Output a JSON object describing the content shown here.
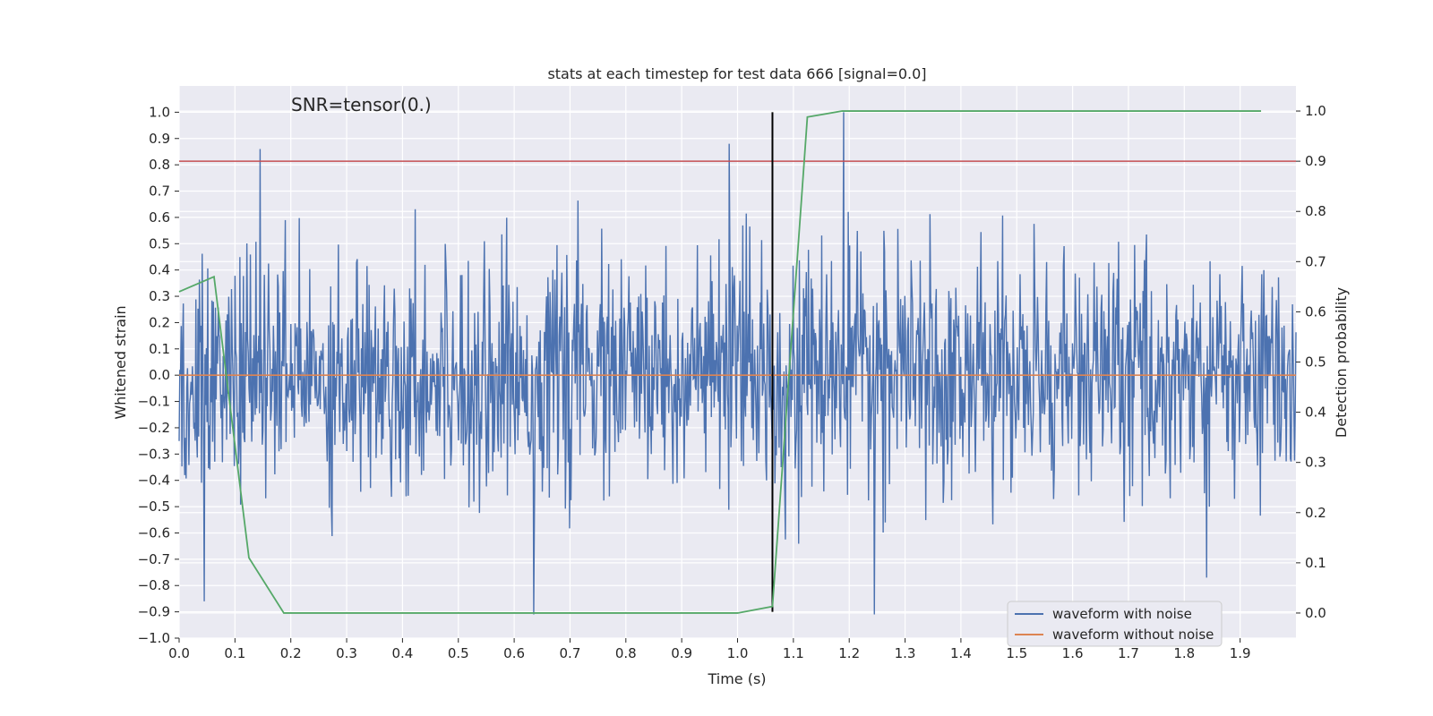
{
  "chart_data": {
    "type": "line",
    "title": "stats at each timestep for test data 666 [signal=0.0]",
    "annotation": "SNR=tensor(0.)",
    "xlabel": "Time (s)",
    "ylabel": "Whitened strain",
    "ylabel_right": "Detection probability",
    "xlim": [
      0.0,
      2.0
    ],
    "ylim": [
      -1.0,
      1.1
    ],
    "ylim_right": [
      -0.05,
      1.05
    ],
    "grid": true,
    "legend_position": "lower-right",
    "x_ticks": [
      "0.0",
      "0.1",
      "0.2",
      "0.3",
      "0.4",
      "0.5",
      "0.6",
      "0.7",
      "0.8",
      "0.9",
      "1.0",
      "1.1",
      "1.2",
      "1.3",
      "1.4",
      "1.5",
      "1.6",
      "1.7",
      "1.8",
      "1.9"
    ],
    "y_ticks": [
      "-1.0",
      "-0.9",
      "-0.8",
      "-0.7",
      "-0.6",
      "-0.5",
      "-0.4",
      "-0.3",
      "-0.2",
      "-0.1",
      "0.0",
      "0.1",
      "0.2",
      "0.3",
      "0.4",
      "0.5",
      "0.6",
      "0.7",
      "0.8",
      "0.9",
      "1.0"
    ],
    "y_right_ticks": [
      "0.0",
      "0.1",
      "0.2",
      "0.3",
      "0.4",
      "0.5",
      "0.6",
      "0.7",
      "0.8",
      "0.9",
      "1.0"
    ],
    "series": [
      {
        "name": "waveform with noise",
        "color": "#4c72b0",
        "axis": "left",
        "note_amplitude_std": 0.22,
        "sample_count": 1600,
        "noise_seed": 666,
        "peaks": [
          {
            "x": 0.045,
            "y": -0.86
          },
          {
            "x": 0.145,
            "y": 0.86
          },
          {
            "x": 0.635,
            "y": -0.91
          },
          {
            "x": 0.985,
            "y": 0.88
          },
          {
            "x": 1.19,
            "y": 1.0
          },
          {
            "x": 1.245,
            "y": -0.91
          },
          {
            "x": 1.84,
            "y": -0.77
          }
        ]
      },
      {
        "name": "waveform without noise",
        "color": "#dd8452",
        "axis": "left",
        "x": [
          0.0,
          2.0
        ],
        "y": [
          0.0,
          0.0
        ]
      },
      {
        "name": "",
        "color": "#55a868",
        "axis": "right",
        "x": [
          0.0,
          0.0625,
          0.125,
          0.1875,
          0.25,
          0.3125,
          0.375,
          0.4375,
          0.5,
          0.5625,
          0.625,
          0.6875,
          0.75,
          0.8125,
          0.875,
          0.9375,
          1.0,
          1.0625,
          1.125,
          1.1875,
          1.25,
          1.3125,
          1.375,
          1.4375,
          1.5,
          1.5625,
          1.625,
          1.6875,
          1.75,
          1.8125,
          1.875,
          1.9375
        ],
        "y": [
          0.64,
          0.67,
          0.11,
          0.0,
          0.0,
          0.0,
          0.0,
          0.0,
          0.0,
          0.0,
          0.0,
          0.0,
          0.0,
          0.0,
          0.0,
          0.0,
          0.0,
          0.013,
          0.988,
          1.0,
          1.0,
          1.0,
          1.0,
          1.0,
          1.0,
          1.0,
          1.0,
          1.0,
          1.0,
          1.0,
          1.0,
          1.0
        ]
      }
    ],
    "reference_lines": [
      {
        "orientation": "horizontal",
        "axis": "right",
        "value": 0.9,
        "color": "#c44e52"
      },
      {
        "orientation": "vertical",
        "value": 1.0625,
        "y_from": -0.9,
        "y_to": 1.0,
        "color": "#000000"
      }
    ]
  },
  "colors": {
    "plot_background": "#eaeaf2",
    "grid": "#ffffff",
    "text": "#262626"
  }
}
